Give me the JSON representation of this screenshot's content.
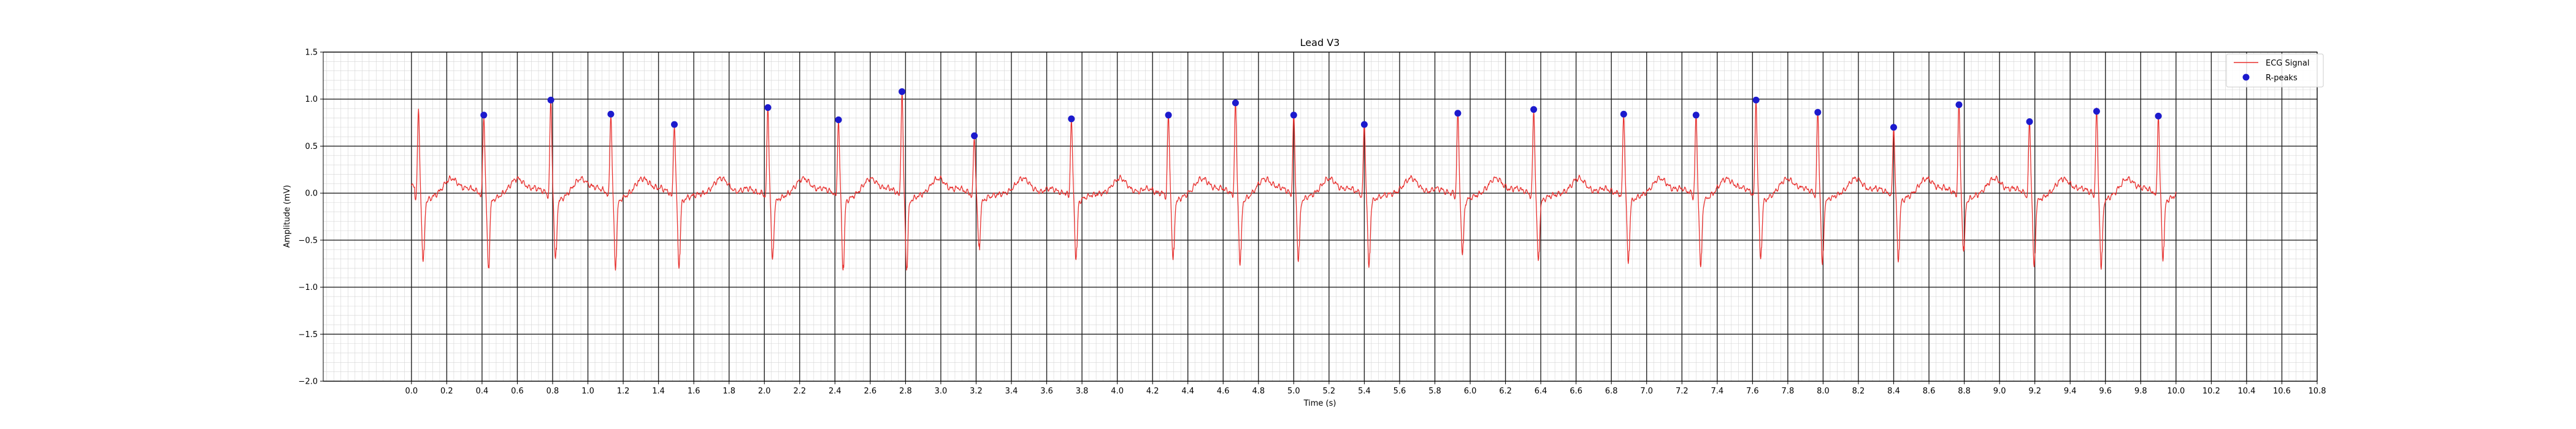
{
  "chart_data": {
    "type": "line",
    "title": "Lead V3",
    "xlabel": "Time (s)",
    "ylabel": "Amplitude (mV)",
    "xlim": [
      -0.5,
      10.8
    ],
    "ylim": [
      -2.0,
      1.5
    ],
    "x_ticks": [
      0.0,
      0.2,
      0.4,
      0.6,
      0.8,
      1.0,
      1.2,
      1.4,
      1.6,
      1.8,
      2.0,
      2.2,
      2.4,
      2.6,
      2.8,
      3.0,
      3.2,
      3.4,
      3.6,
      3.8,
      4.0,
      4.2,
      4.4,
      4.6,
      4.8,
      5.0,
      5.2,
      5.4,
      5.6,
      5.8,
      6.0,
      6.2,
      6.4,
      6.6,
      6.8,
      7.0,
      7.2,
      7.4,
      7.6,
      7.8,
      8.0,
      8.2,
      8.4,
      8.6,
      8.8,
      9.0,
      9.2,
      9.4,
      9.6,
      9.8,
      10.0,
      10.2,
      10.4,
      10.6,
      10.8
    ],
    "x_tick_labels": [
      "0.0",
      "0.2",
      "0.4",
      "0.6",
      "0.8",
      "1.0",
      "1.2",
      "1.4",
      "1.6",
      "1.8",
      "2.0",
      "2.2",
      "2.4",
      "2.6",
      "2.8",
      "3.0",
      "3.2",
      "3.4",
      "3.6",
      "3.8",
      "4.0",
      "4.2",
      "4.4",
      "4.6",
      "4.8",
      "5.0",
      "5.2",
      "5.4",
      "5.6",
      "5.8",
      "6.0",
      "6.2",
      "6.4",
      "6.6",
      "6.8",
      "7.0",
      "7.2",
      "7.4",
      "7.6",
      "7.8",
      "8.0",
      "8.2",
      "8.4",
      "8.6",
      "8.8",
      "9.0",
      "9.2",
      "9.4",
      "9.6",
      "9.8",
      "10.0",
      "10.2",
      "10.4",
      "10.6",
      "10.8"
    ],
    "y_ticks": [
      -2.0,
      -1.5,
      -1.0,
      -0.5,
      0.0,
      0.5,
      1.0,
      1.5
    ],
    "y_tick_labels": [
      "−2.0",
      "−1.5",
      "−1.0",
      "−0.5",
      "0.0",
      "0.5",
      "1.0",
      "1.5"
    ],
    "grid": "ECG paper: major lines every 0.2 s and 0.5 mV, minor lines every 0.04 s and 0.1 mV",
    "legend_position": "top-right",
    "signal_duration": 10.0,
    "colors": {
      "signal": "#e8312f",
      "peaks": "#1c1acd",
      "major_grid": "#222222",
      "minor_grid": "#d4d4d4"
    },
    "series": [
      {
        "name": "ECG Signal",
        "kind": "line",
        "beats": [
          {
            "r_time": 0.04,
            "r_amp": 0.88,
            "s_amp": -0.75
          },
          {
            "r_time": 0.41,
            "r_amp": 0.83,
            "s_amp": -0.79
          },
          {
            "r_time": 0.79,
            "r_amp": 0.99,
            "s_amp": -0.73
          },
          {
            "r_time": 1.13,
            "r_amp": 0.84,
            "s_amp": -0.8
          },
          {
            "r_time": 1.49,
            "r_amp": 0.73,
            "s_amp": -0.79
          },
          {
            "r_time": 2.02,
            "r_amp": 0.91,
            "s_amp": -0.72
          },
          {
            "r_time": 2.42,
            "r_amp": 0.78,
            "s_amp": -0.8
          },
          {
            "r_time": 2.78,
            "r_amp": 1.08,
            "s_amp": -0.79
          },
          {
            "r_time": 3.19,
            "r_amp": 0.61,
            "s_amp": -0.57
          },
          {
            "r_time": 3.74,
            "r_amp": 0.79,
            "s_amp": -0.71
          },
          {
            "r_time": 4.29,
            "r_amp": 0.83,
            "s_amp": -0.73
          },
          {
            "r_time": 4.67,
            "r_amp": 0.96,
            "s_amp": -0.76
          },
          {
            "r_time": 5.0,
            "r_amp": 0.83,
            "s_amp": -0.72
          },
          {
            "r_time": 5.4,
            "r_amp": 0.73,
            "s_amp": -0.79
          },
          {
            "r_time": 5.93,
            "r_amp": 0.85,
            "s_amp": -0.66
          },
          {
            "r_time": 6.36,
            "r_amp": 0.89,
            "s_amp": -0.73
          },
          {
            "r_time": 6.87,
            "r_amp": 0.84,
            "s_amp": -0.75
          },
          {
            "r_time": 7.28,
            "r_amp": 0.83,
            "s_amp": -0.8
          },
          {
            "r_time": 7.62,
            "r_amp": 0.99,
            "s_amp": -0.7
          },
          {
            "r_time": 7.97,
            "r_amp": 0.86,
            "s_amp": -0.77
          },
          {
            "r_time": 8.4,
            "r_amp": 0.7,
            "s_amp": -0.71
          },
          {
            "r_time": 8.77,
            "r_amp": 0.94,
            "s_amp": -0.61
          },
          {
            "r_time": 9.17,
            "r_amp": 0.76,
            "s_amp": -0.8
          },
          {
            "r_time": 9.55,
            "r_amp": 0.87,
            "s_amp": -0.8
          },
          {
            "r_time": 9.9,
            "r_amp": 0.82,
            "s_amp": -0.69
          }
        ]
      },
      {
        "name": "R-peaks",
        "kind": "scatter",
        "x": [
          0.41,
          0.79,
          1.13,
          1.49,
          2.02,
          2.42,
          2.78,
          3.19,
          3.74,
          4.29,
          4.67,
          5.0,
          5.4,
          5.93,
          6.36,
          6.87,
          7.28,
          7.62,
          7.97,
          8.4,
          8.77,
          9.17,
          9.55,
          9.9
        ],
        "y": [
          0.83,
          0.99,
          0.84,
          0.73,
          0.91,
          0.78,
          1.08,
          0.61,
          0.79,
          0.83,
          0.96,
          0.83,
          0.73,
          0.85,
          0.89,
          0.84,
          0.83,
          0.99,
          0.86,
          0.7,
          0.94,
          0.76,
          0.87,
          0.82
        ]
      }
    ]
  }
}
